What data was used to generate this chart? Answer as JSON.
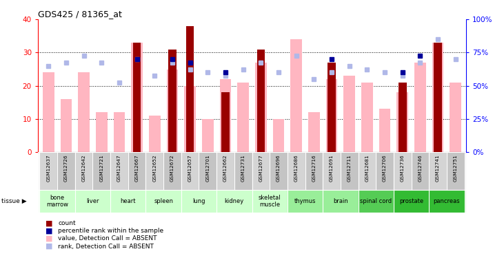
{
  "title": "GDS425 / 81365_at",
  "samples": [
    "GSM12637",
    "GSM12726",
    "GSM12642",
    "GSM12721",
    "GSM12647",
    "GSM12667",
    "GSM12652",
    "GSM12672",
    "GSM12657",
    "GSM12701",
    "GSM12662",
    "GSM12731",
    "GSM12677",
    "GSM12696",
    "GSM12686",
    "GSM12716",
    "GSM12691",
    "GSM12711",
    "GSM12681",
    "GSM12706",
    "GSM12736",
    "GSM12746",
    "GSM12741",
    "GSM12751"
  ],
  "tissue_label_names": [
    "bone\nmarrow",
    "liver",
    "heart",
    "spleen",
    "lung",
    "kidney",
    "skeletal\nmuscle",
    "thymus",
    "brain",
    "spinal cord",
    "prostate",
    "pancreas"
  ],
  "tissue_label_indices": [
    0,
    2,
    4,
    6,
    8,
    10,
    12,
    14,
    16,
    18,
    20,
    22
  ],
  "tissue_bg_colors": [
    "#ccffcc",
    "#ccffcc",
    "#ccffcc",
    "#ccffcc",
    "#ccffcc",
    "#ccffcc",
    "#ccffcc",
    "#99ee99",
    "#99ee99",
    "#55cc55",
    "#33bb33",
    "#33bb33"
  ],
  "value_bars": [
    24,
    16,
    24,
    12,
    12,
    33,
    11,
    25,
    20,
    10,
    22,
    21,
    27,
    10,
    34,
    12,
    22,
    23,
    21,
    13,
    18,
    27,
    33,
    21
  ],
  "rank_bars": [
    26,
    27,
    29,
    27,
    21,
    28,
    23,
    27,
    25,
    24,
    23,
    25,
    27,
    24,
    29,
    22,
    24,
    26,
    25,
    24,
    23,
    27,
    34,
    28
  ],
  "count_bars": [
    0,
    0,
    0,
    0,
    0,
    33,
    0,
    31,
    38,
    0,
    18,
    0,
    31,
    0,
    0,
    0,
    27,
    0,
    0,
    0,
    21,
    0,
    33,
    0
  ],
  "blue_markers": [
    0,
    0,
    0,
    0,
    0,
    28,
    0,
    28,
    27,
    0,
    24,
    0,
    0,
    0,
    0,
    0,
    28,
    0,
    0,
    0,
    24,
    29,
    0,
    0
  ],
  "ylim": [
    0,
    40
  ],
  "yticks_left": [
    0,
    10,
    20,
    30,
    40
  ],
  "yticks_right": [
    0,
    25,
    50,
    75,
    100
  ],
  "color_dark_red": "#990000",
  "color_pink": "#FFB6C1",
  "color_light_blue": "#b0b8e8",
  "color_blue": "#000099",
  "color_sample_bg_even": "#d4d4d4",
  "color_sample_bg_odd": "#c4c4c4",
  "color_sample_border": "#ffffff"
}
